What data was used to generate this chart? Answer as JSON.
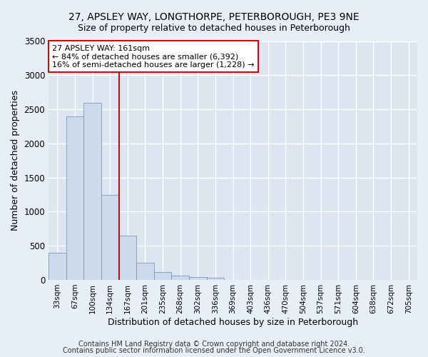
{
  "title": "27, APSLEY WAY, LONGTHORPE, PETERBOROUGH, PE3 9NE",
  "subtitle": "Size of property relative to detached houses in Peterborough",
  "xlabel": "Distribution of detached houses by size in Peterborough",
  "ylabel": "Number of detached properties",
  "categories": [
    "33sqm",
    "67sqm",
    "100sqm",
    "134sqm",
    "167sqm",
    "201sqm",
    "235sqm",
    "268sqm",
    "302sqm",
    "336sqm",
    "369sqm",
    "403sqm",
    "436sqm",
    "470sqm",
    "504sqm",
    "537sqm",
    "571sqm",
    "604sqm",
    "638sqm",
    "672sqm",
    "705sqm"
  ],
  "bar_values": [
    400,
    2400,
    2600,
    1250,
    650,
    250,
    110,
    60,
    40,
    30,
    0,
    0,
    0,
    0,
    0,
    0,
    0,
    0,
    0,
    0,
    0
  ],
  "bar_color": "#ccdaeb",
  "bar_edge_color": "#7799bb",
  "vline_color": "#bb1111",
  "annotation_title": "27 APSLEY WAY: 161sqm",
  "annotation_line1": "← 84% of detached houses are smaller (6,392)",
  "annotation_line2": "16% of semi-detached houses are larger (1,228) →",
  "annotation_box_color": "#bb1111",
  "ylim": [
    0,
    3500
  ],
  "yticks": [
    0,
    500,
    1000,
    1500,
    2000,
    2500,
    3000,
    3500
  ],
  "footer1": "Contains HM Land Registry data © Crown copyright and database right 2024.",
  "footer2": "Contains public sector information licensed under the Open Government Licence v3.0.",
  "bg_color": "#e8eef5",
  "plot_bg_color": "#dde6f0"
}
